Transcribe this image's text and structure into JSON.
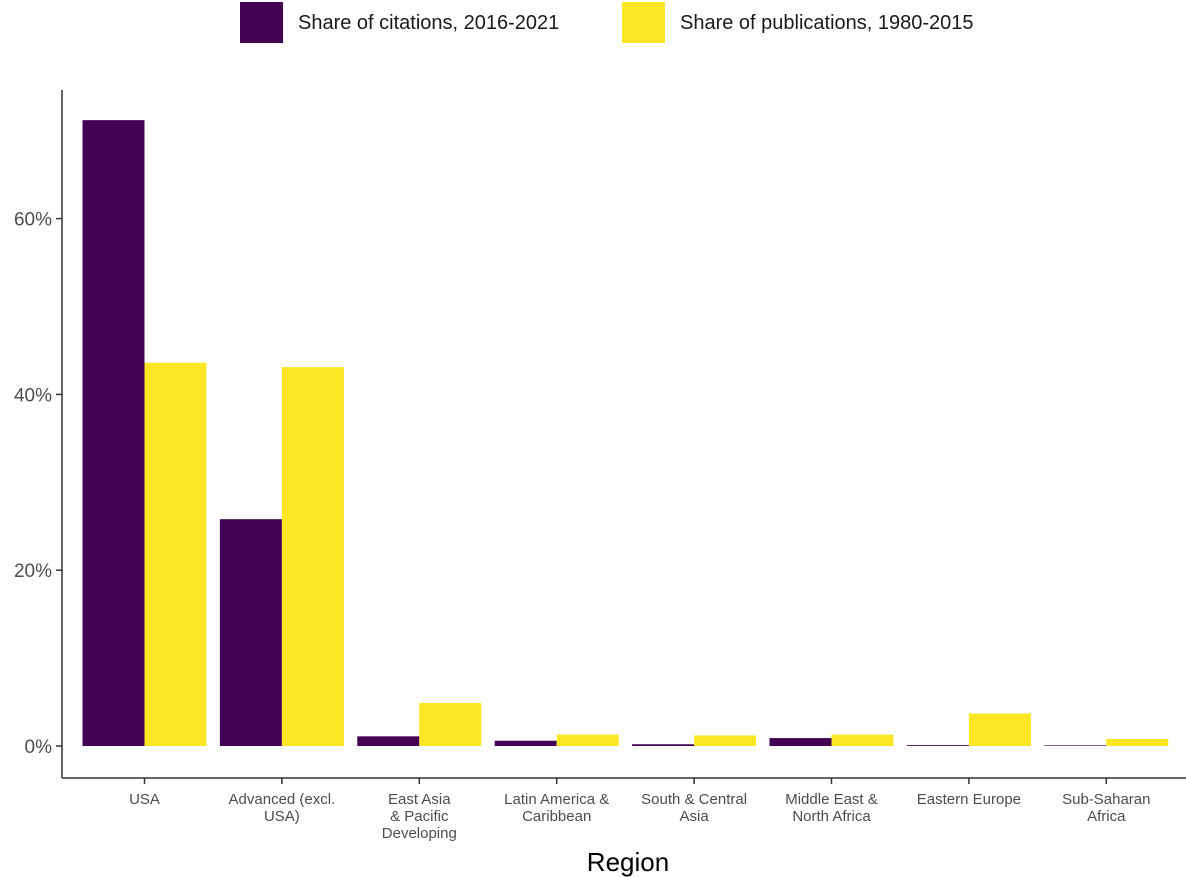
{
  "chart_data": {
    "type": "bar",
    "xlabel": "Region",
    "ylabel": "",
    "ylim": [
      0,
      0.72
    ],
    "y_ticks": [
      0,
      0.2,
      0.4,
      0.6
    ],
    "y_tick_labels": [
      "0%",
      "20%",
      "40%",
      "60%"
    ],
    "legend_position": "top",
    "grid": false,
    "categories": [
      [
        "USA"
      ],
      [
        "Advanced (excl.",
        "USA)"
      ],
      [
        "East Asia",
        "& Pacific",
        "Developing"
      ],
      [
        "Latin America &",
        "Caribbean"
      ],
      [
        "South & Central",
        "Asia"
      ],
      [
        "Middle East &",
        "North Africa"
      ],
      [
        "Eastern Europe"
      ],
      [
        "Sub-Saharan",
        "Africa"
      ]
    ],
    "series": [
      {
        "name": "Share of citations, 2016-2021",
        "color": "#440154",
        "values": [
          0.712,
          0.258,
          0.011,
          0.006,
          0.002,
          0.009,
          0.001,
          0.0005
        ]
      },
      {
        "name": "Share of publications, 1980-2015",
        "color": "#fde725",
        "values": [
          0.436,
          0.431,
          0.049,
          0.013,
          0.012,
          0.013,
          0.037,
          0.008
        ]
      }
    ]
  }
}
